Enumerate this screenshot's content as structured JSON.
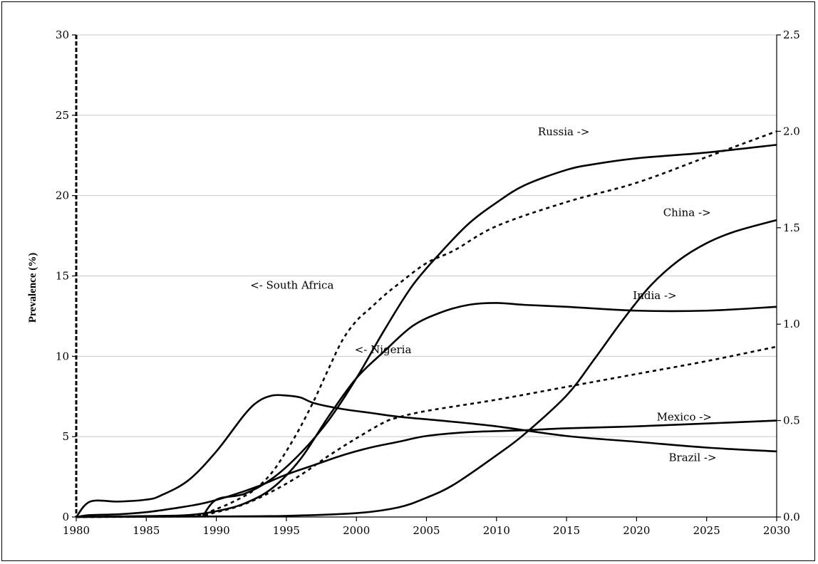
{
  "chart_data": {
    "type": "line",
    "title": "",
    "xlabel": "",
    "ylabel": "Prevalence (%)",
    "y2label": "",
    "xlim": [
      1980,
      2030
    ],
    "ylim": [
      0,
      30
    ],
    "y2lim": [
      0,
      2.5
    ],
    "grid": "horizontal",
    "legend": "none (inline series labels)",
    "x_ticks": [
      "1980",
      "1985",
      "1990",
      "1995",
      "2000",
      "2005",
      "2010",
      "2015",
      "2020",
      "2025",
      "2030"
    ],
    "y_ticks": [
      "0",
      "5",
      "10",
      "15",
      "20",
      "25",
      "30"
    ],
    "y2_ticks": [
      "0.0",
      "0.5",
      "1.0",
      "1.5",
      "2.0",
      "2.5"
    ],
    "series": [
      {
        "name": "South Africa",
        "label": "<- South Africa",
        "axis": "left",
        "style": "dashed",
        "x": [
          1980,
          1988,
          1990,
          1992,
          1993,
          1994,
          1995,
          1996,
          1997,
          1998,
          1999,
          2000,
          2001,
          2002,
          2003,
          2005,
          2007,
          2010,
          2015,
          2020,
          2025,
          2030
        ],
        "y": [
          0,
          0.1,
          0.5,
          1.3,
          1.9,
          2.8,
          4.1,
          5.6,
          7.3,
          9.2,
          11,
          12.2,
          13,
          13.8,
          14.5,
          15.8,
          16.6,
          18.1,
          19.6,
          20.8,
          22.4,
          24
        ]
      },
      {
        "name": "Nigeria",
        "label": "<- Nigeria",
        "axis": "left",
        "style": "dashed",
        "x": [
          1980,
          1988,
          1990,
          1992,
          1994,
          1996,
          1998,
          2000,
          2002,
          2003,
          2005,
          2010,
          2015,
          2020,
          2025,
          2030
        ],
        "y": [
          0,
          0.05,
          0.3,
          0.8,
          1.6,
          2.6,
          3.8,
          4.9,
          5.9,
          6.2,
          6.6,
          7.3,
          8.1,
          8.9,
          9.7,
          10.6
        ]
      },
      {
        "name": "Russia",
        "label": "Russia ->",
        "axis": "right",
        "x": [
          1989,
          1990,
          1992,
          1994,
          1996,
          1998,
          2000,
          2002,
          2004,
          2006,
          2008,
          2010,
          2012,
          2015,
          2017,
          2020,
          2025,
          2030
        ],
        "y": [
          0,
          0.09,
          0.12,
          0.2,
          0.33,
          0.5,
          0.72,
          0.97,
          1.2,
          1.37,
          1.52,
          1.63,
          1.72,
          1.8,
          1.83,
          1.86,
          1.89,
          1.93
        ]
      },
      {
        "name": "China",
        "label": "China ->",
        "axis": "right",
        "x": [
          1980,
          1990,
          1995,
          2000,
          2003,
          2005,
          2007,
          2010,
          2012,
          2015,
          2017,
          2019,
          2021,
          2023,
          2025,
          2027,
          2030
        ],
        "y": [
          0,
          0.003,
          0.006,
          0.02,
          0.05,
          0.1,
          0.17,
          0.32,
          0.43,
          0.63,
          0.82,
          1.02,
          1.2,
          1.33,
          1.42,
          1.48,
          1.54
        ]
      },
      {
        "name": "India",
        "label": "India ->",
        "axis": "right",
        "x": [
          1980,
          1985,
          1988,
          1990,
          1992,
          1994,
          1996,
          1998,
          2000,
          2002,
          2004,
          2006,
          2008,
          2010,
          2012,
          2015,
          2020,
          2025,
          2030
        ],
        "y": [
          0,
          0.005,
          0.01,
          0.03,
          0.07,
          0.15,
          0.3,
          0.52,
          0.72,
          0.86,
          0.99,
          1.06,
          1.1,
          1.11,
          1.1,
          1.09,
          1.07,
          1.07,
          1.09
        ]
      },
      {
        "name": "Mexico",
        "label": "Mexico ->",
        "axis": "right",
        "x": [
          1980,
          1981,
          1983,
          1985,
          1987,
          1989,
          1991,
          1993,
          1995,
          1997,
          1999,
          2001,
          2003,
          2005,
          2008,
          2012,
          2015,
          2020,
          2025,
          2030
        ],
        "y": [
          0,
          0.01,
          0.014,
          0.025,
          0.045,
          0.07,
          0.11,
          0.16,
          0.22,
          0.27,
          0.32,
          0.36,
          0.39,
          0.42,
          0.44,
          0.45,
          0.46,
          0.47,
          0.485,
          0.5
        ]
      },
      {
        "name": "Brazil",
        "label": "Brazil ->",
        "axis": "right",
        "x": [
          1980,
          1981,
          1983,
          1985,
          1986,
          1988,
          1990,
          1992,
          1993,
          1994,
          1995,
          1996,
          1997,
          1999,
          2001,
          2003,
          2006,
          2010,
          2015,
          2020,
          2025,
          2030
        ],
        "y": [
          0,
          0.08,
          0.08,
          0.09,
          0.11,
          0.19,
          0.34,
          0.53,
          0.6,
          0.63,
          0.63,
          0.62,
          0.59,
          0.56,
          0.54,
          0.52,
          0.5,
          0.47,
          0.42,
          0.39,
          0.36,
          0.34
        ]
      }
    ]
  }
}
